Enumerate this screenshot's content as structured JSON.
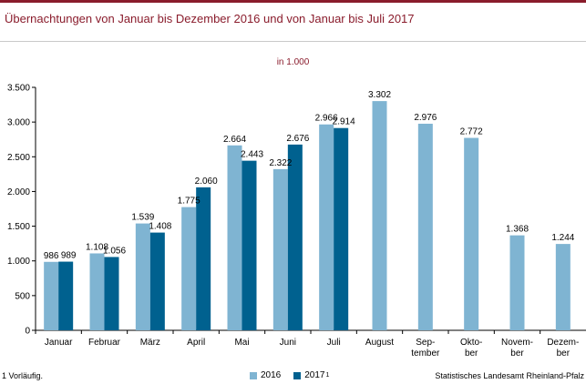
{
  "title": "Übernachtungen von Januar bis Dezember 2016 und von Januar bis Juli 2017",
  "footnote": "1 Vorläufig.",
  "source": "Statistisches Landesamt Rheinland-Pfalz",
  "colors": {
    "accent": "#8a1c2c",
    "series_2016": "#7fb4d2",
    "series_2017": "#00618f"
  },
  "legend": [
    {
      "label": "2016",
      "sup": ""
    },
    {
      "label": "2017",
      "sup": "1"
    }
  ],
  "chart_data": {
    "type": "bar",
    "title": "",
    "unit_label": "in 1.000",
    "xlabel": "",
    "ylabel": "",
    "ylim": [
      0,
      3500
    ],
    "yticks": [
      0,
      500,
      1000,
      1500,
      2000,
      2500,
      3000,
      3500
    ],
    "ytick_labels": [
      "0",
      "500",
      "1.000",
      "1.500",
      "2.000",
      "2.500",
      "3.000",
      "3.500"
    ],
    "grid": false,
    "legend_position": "bottom",
    "categories": [
      [
        "Januar"
      ],
      [
        "Februar"
      ],
      [
        "März"
      ],
      [
        "April"
      ],
      [
        "Mai"
      ],
      [
        "Juni"
      ],
      [
        "Juli"
      ],
      [
        "August"
      ],
      [
        "Sep-",
        "tember"
      ],
      [
        "Okto-",
        "ber"
      ],
      [
        "Novem-",
        "ber"
      ],
      [
        "Dezem-",
        "ber"
      ]
    ],
    "series": [
      {
        "name": "2016",
        "values": [
          986,
          1108,
          1539,
          1775,
          2664,
          2322,
          2966,
          3302,
          2976,
          2772,
          1368,
          1244
        ],
        "labels": [
          "986",
          "1.108",
          "1.539",
          "1.775",
          "2.664",
          "2.322",
          "2.966",
          "3.302",
          "2.976",
          "2.772",
          "1.368",
          "1.244"
        ]
      },
      {
        "name": "2017",
        "values": [
          989,
          1056,
          1408,
          2060,
          2443,
          2676,
          2914,
          null,
          null,
          null,
          null,
          null
        ],
        "labels": [
          "989",
          "1.056",
          "1.408",
          "2.060",
          "2.443",
          "2.676",
          "2.914",
          "",
          "",
          "",
          "",
          ""
        ]
      }
    ]
  }
}
